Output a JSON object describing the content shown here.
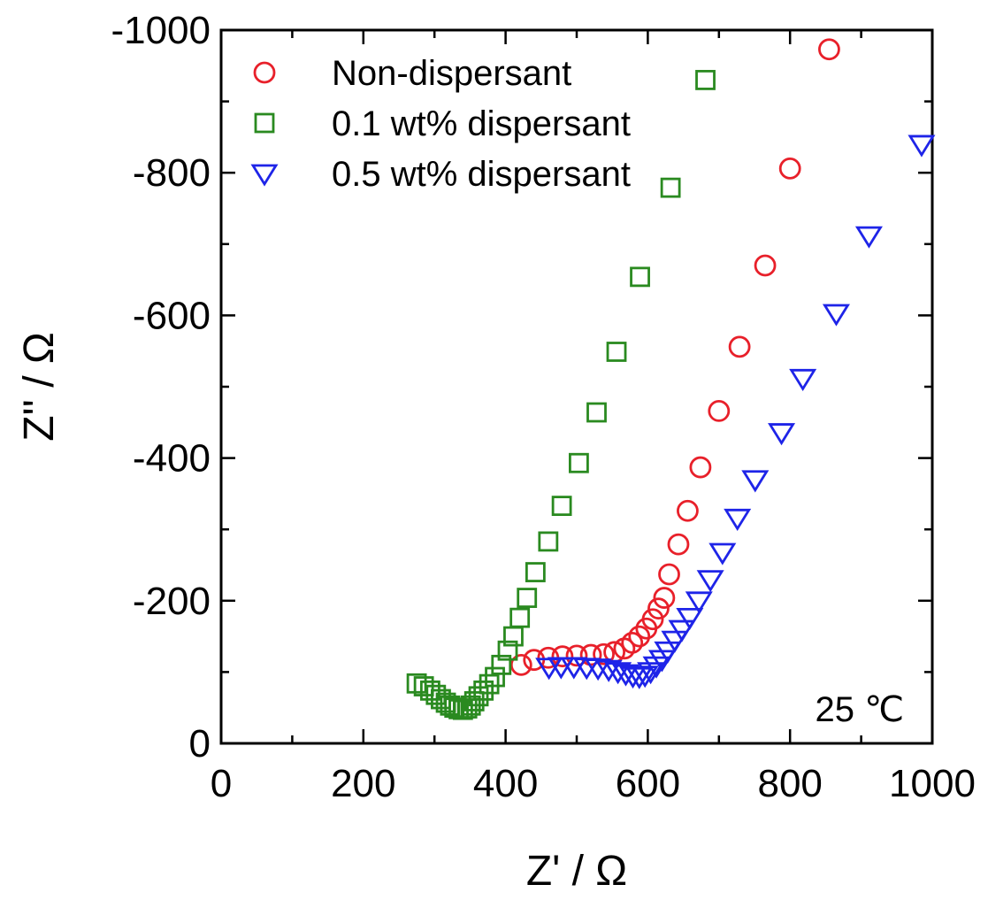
{
  "chart_data": {
    "type": "scatter",
    "xlabel": "Z' / Ω",
    "ylabel": "Z'' / Ω",
    "xlim": [
      0,
      1000
    ],
    "ylim": [
      0,
      -1000
    ],
    "x_ticks": [
      0,
      200,
      400,
      600,
      800,
      1000
    ],
    "y_ticks": [
      0,
      -200,
      -400,
      -600,
      -800,
      -1000
    ],
    "x_tick_labels": [
      "0",
      "200",
      "400",
      "600",
      "800",
      "1000"
    ],
    "y_tick_labels": [
      "0",
      "-200",
      "-400",
      "-600",
      "-800",
      "-1000"
    ],
    "grid": false,
    "legend_position": "top-left",
    "annotation": "25 ℃",
    "series": [
      {
        "name": "Non-dispersant",
        "marker": "circle",
        "color": "#e8202a",
        "points": [
          [
            422,
            -110
          ],
          [
            440,
            -117
          ],
          [
            460,
            -120
          ],
          [
            480,
            -122
          ],
          [
            500,
            -123
          ],
          [
            520,
            -124
          ],
          [
            538,
            -125
          ],
          [
            553,
            -128
          ],
          [
            567,
            -133
          ],
          [
            578,
            -141
          ],
          [
            588,
            -150
          ],
          [
            598,
            -161
          ],
          [
            607,
            -174
          ],
          [
            615,
            -189
          ],
          [
            623,
            -204
          ],
          [
            630,
            -237
          ],
          [
            643,
            -279
          ],
          [
            656,
            -326
          ],
          [
            674,
            -387
          ],
          [
            700,
            -466
          ],
          [
            729,
            -556
          ],
          [
            765,
            -670
          ],
          [
            800,
            -806
          ],
          [
            855,
            -973
          ]
        ]
      },
      {
        "name": "0.1 wt% dispersant",
        "marker": "square",
        "color": "#2a8a20",
        "points": [
          [
            275,
            -84
          ],
          [
            285,
            -80
          ],
          [
            294,
            -74
          ],
          [
            302,
            -68
          ],
          [
            309,
            -62
          ],
          [
            316,
            -57
          ],
          [
            322,
            -53
          ],
          [
            328,
            -50
          ],
          [
            334,
            -48
          ],
          [
            340,
            -47
          ],
          [
            346,
            -49
          ],
          [
            351,
            -53
          ],
          [
            356,
            -59
          ],
          [
            362,
            -66
          ],
          [
            369,
            -74
          ],
          [
            377,
            -83
          ],
          [
            385,
            -93
          ],
          [
            394,
            -110
          ],
          [
            403,
            -130
          ],
          [
            411,
            -150
          ],
          [
            420,
            -176
          ],
          [
            430,
            -204
          ],
          [
            442,
            -240
          ],
          [
            460,
            -283
          ],
          [
            479,
            -333
          ],
          [
            503,
            -393
          ],
          [
            528,
            -464
          ],
          [
            556,
            -549
          ],
          [
            589,
            -654
          ],
          [
            632,
            -779
          ],
          [
            681,
            -930
          ]
        ]
      },
      {
        "name": "0.5 wt% dispersant",
        "marker": "triangle-down",
        "color": "#1e24e8",
        "points": [
          [
            461,
            -107
          ],
          [
            478,
            -108
          ],
          [
            496,
            -108
          ],
          [
            514,
            -107
          ],
          [
            530,
            -106
          ],
          [
            545,
            -104
          ],
          [
            558,
            -101
          ],
          [
            569,
            -98
          ],
          [
            579,
            -95
          ],
          [
            588,
            -94
          ],
          [
            596,
            -96
          ],
          [
            604,
            -101
          ],
          [
            612,
            -109
          ],
          [
            620,
            -118
          ],
          [
            628,
            -130
          ],
          [
            638,
            -145
          ],
          [
            648,
            -160
          ],
          [
            659,
            -177
          ],
          [
            672,
            -200
          ],
          [
            688,
            -230
          ],
          [
            705,
            -268
          ],
          [
            726,
            -316
          ],
          [
            751,
            -370
          ],
          [
            788,
            -436
          ],
          [
            818,
            -512
          ],
          [
            865,
            -603
          ],
          [
            911,
            -712
          ],
          [
            985,
            -840
          ]
        ]
      }
    ]
  }
}
